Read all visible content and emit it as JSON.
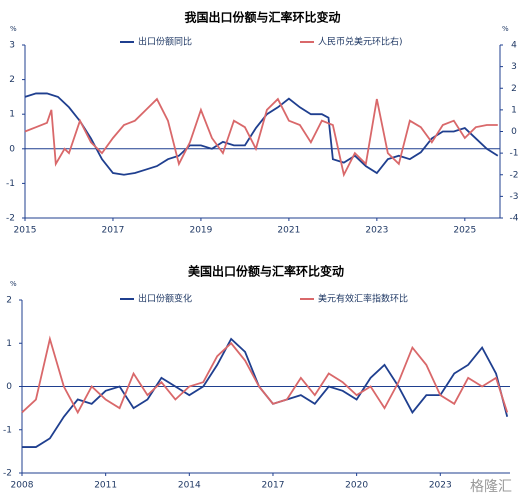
{
  "chart_data": [
    {
      "type": "line",
      "title": "我国出口份额与汇率环比变动",
      "y_label": "%",
      "y2_label": "%",
      "xlim": [
        2015,
        2025.8
      ],
      "xticks": [
        2015,
        2017,
        2019,
        2021,
        2023,
        2025
      ],
      "ylim": [
        -2,
        3
      ],
      "yticks": [
        -2,
        -1,
        0,
        1,
        2,
        3
      ],
      "y2lim": [
        -4,
        4
      ],
      "y2ticks": [
        -4,
        -3,
        -2,
        -1,
        0,
        1,
        2,
        3,
        4
      ],
      "series": [
        {
          "name": "出口份额同比",
          "color": "#1f3f8f",
          "x": [
            2015,
            2015.25,
            2015.5,
            2015.75,
            2016,
            2016.25,
            2016.5,
            2016.75,
            2017,
            2017.25,
            2017.5,
            2017.75,
            2018,
            2018.25,
            2018.5,
            2018.75,
            2019,
            2019.25,
            2019.5,
            2019.75,
            2020,
            2020.25,
            2020.5,
            2020.75,
            2021,
            2021.25,
            2021.5,
            2021.75,
            2021.9,
            2022,
            2022.25,
            2022.5,
            2022.75,
            2023,
            2023.25,
            2023.5,
            2023.75,
            2024,
            2024.25,
            2024.5,
            2024.75,
            2025,
            2025.25,
            2025.5,
            2025.75
          ],
          "values": [
            1.5,
            1.6,
            1.6,
            1.5,
            1.2,
            0.8,
            0.3,
            -0.3,
            -0.7,
            -0.75,
            -0.7,
            -0.6,
            -0.5,
            -0.3,
            -0.2,
            0.1,
            0.1,
            0,
            0.2,
            0.1,
            0.1,
            0.6,
            1,
            1.2,
            1.45,
            1.2,
            1,
            1,
            0.9,
            -0.3,
            -0.4,
            -0.2,
            -0.5,
            -0.7,
            -0.3,
            -0.2,
            -0.3,
            -0.1,
            0.3,
            0.5,
            0.5,
            0.6,
            0.3,
            0,
            -0.2
          ]
        },
        {
          "name": "人民币兑美元环比右)",
          "color": "#d9686a",
          "axis": "y2",
          "x": [
            2015,
            2015.25,
            2015.5,
            2015.6,
            2015.7,
            2015.9,
            2016,
            2016.25,
            2016.5,
            2016.75,
            2017,
            2017.25,
            2017.5,
            2017.75,
            2018,
            2018.25,
            2018.5,
            2018.75,
            2019,
            2019.25,
            2019.5,
            2019.75,
            2020,
            2020.25,
            2020.5,
            2020.75,
            2021,
            2021.25,
            2021.5,
            2021.75,
            2022,
            2022.25,
            2022.5,
            2022.75,
            2023,
            2023.25,
            2023.5,
            2023.75,
            2024,
            2024.25,
            2024.5,
            2024.75,
            2025,
            2025.25,
            2025.5,
            2025.75
          ],
          "values": [
            0,
            0.2,
            0.4,
            1,
            -1.5,
            -0.8,
            -1,
            0.5,
            -0.5,
            -1,
            -0.3,
            0.3,
            0.5,
            1,
            1.5,
            0.5,
            -1.5,
            -0.5,
            1,
            -0.3,
            -1,
            0.5,
            0.2,
            -0.8,
            1,
            1.5,
            0.5,
            0.3,
            -0.5,
            0.5,
            0.3,
            -2,
            -1,
            -1.5,
            1.5,
            -1,
            -1.5,
            0.5,
            0.2,
            -0.5,
            0.3,
            0.5,
            -0.3,
            0.2,
            0.3,
            0.3
          ]
        }
      ]
    },
    {
      "type": "line",
      "title": "美国出口份额与汇率环比变动",
      "y_label": "%",
      "xlim": [
        2008,
        2025.5
      ],
      "xticks": [
        2008,
        2011,
        2014,
        2017,
        2020,
        2023
      ],
      "ylim": [
        -2,
        2
      ],
      "yticks": [
        -2,
        -1,
        0,
        1,
        2
      ],
      "watermark": "格隆汇",
      "series": [
        {
          "name": "出口份额变化",
          "color": "#1f3f8f",
          "x": [
            2008,
            2008.5,
            2009,
            2009.5,
            2010,
            2010.5,
            2011,
            2011.5,
            2012,
            2012.5,
            2013,
            2013.5,
            2014,
            2014.5,
            2015,
            2015.5,
            2016,
            2016.5,
            2017,
            2017.5,
            2018,
            2018.5,
            2019,
            2019.5,
            2020,
            2020.5,
            2021,
            2021.5,
            2022,
            2022.5,
            2023,
            2023.5,
            2024,
            2024.5,
            2025,
            2025.4
          ],
          "values": [
            -1.4,
            -1.4,
            -1.2,
            -0.7,
            -0.3,
            -0.4,
            -0.1,
            0,
            -0.5,
            -0.3,
            0.2,
            0,
            -0.2,
            0,
            0.5,
            1.1,
            0.8,
            0,
            -0.4,
            -0.3,
            -0.2,
            -0.4,
            0,
            -0.1,
            -0.3,
            0.2,
            0.5,
            0,
            -0.6,
            -0.2,
            -0.2,
            0.3,
            0.5,
            0.9,
            0.3,
            -0.7
          ]
        },
        {
          "name": "美元有效汇率指数环比",
          "color": "#d9686a",
          "x": [
            2008,
            2008.5,
            2009,
            2009.5,
            2010,
            2010.5,
            2011,
            2011.5,
            2012,
            2012.5,
            2013,
            2013.5,
            2014,
            2014.5,
            2015,
            2015.5,
            2016,
            2016.5,
            2017,
            2017.5,
            2018,
            2018.5,
            2019,
            2019.5,
            2020,
            2020.5,
            2021,
            2021.5,
            2022,
            2022.5,
            2023,
            2023.5,
            2024,
            2024.5,
            2025,
            2025.4
          ],
          "values": [
            -0.6,
            -0.3,
            1.1,
            0,
            -0.6,
            0,
            -0.3,
            -0.5,
            0.3,
            -0.2,
            0.1,
            -0.3,
            0,
            0.1,
            0.7,
            1,
            0.6,
            0,
            -0.4,
            -0.3,
            0.2,
            -0.2,
            0.3,
            0.1,
            -0.2,
            0,
            -0.5,
            0.1,
            0.9,
            0.5,
            -0.2,
            -0.4,
            0.2,
            0,
            0.2,
            -0.6
          ]
        }
      ]
    }
  ]
}
